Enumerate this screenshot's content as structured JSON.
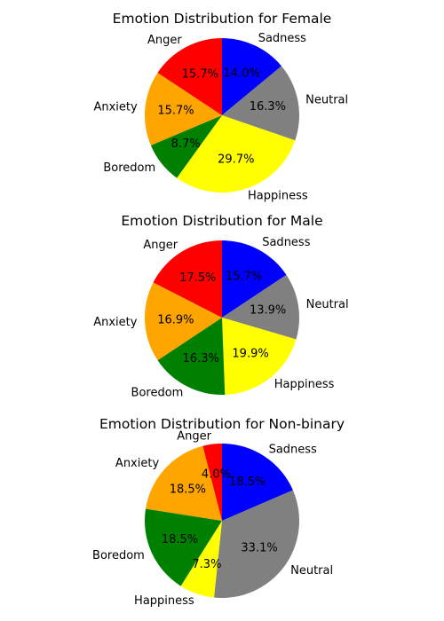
{
  "chart_data": [
    {
      "type": "pie",
      "title": "Emotion Distribution for Female",
      "categories": [
        "Sadness",
        "Neutral",
        "Happiness",
        "Boredom",
        "Anxiety",
        "Anger"
      ],
      "values": [
        14.0,
        16.3,
        29.7,
        8.7,
        15.7,
        15.7
      ],
      "value_labels": [
        "14.0%",
        "16.3%",
        "29.7%",
        "8.7%",
        "15.7%",
        "15.7%"
      ],
      "colors": [
        "#0000ff",
        "#808080",
        "#ffff00",
        "#008000",
        "#ffa500",
        "#ff0000"
      ],
      "start_angle_deg": 90,
      "direction": "clockwise"
    },
    {
      "type": "pie",
      "title": "Emotion Distribution for Male",
      "categories": [
        "Sadness",
        "Neutral",
        "Happiness",
        "Boredom",
        "Anxiety",
        "Anger"
      ],
      "values": [
        15.7,
        13.9,
        19.9,
        16.3,
        16.9,
        17.5
      ],
      "value_labels": [
        "15.7%",
        "13.9%",
        "19.9%",
        "16.3%",
        "16.9%",
        "17.5%"
      ],
      "colors": [
        "#0000ff",
        "#808080",
        "#ffff00",
        "#008000",
        "#ffa500",
        "#ff0000"
      ],
      "start_angle_deg": 90,
      "direction": "clockwise"
    },
    {
      "type": "pie",
      "title": "Emotion Distribution for Non-binary",
      "categories": [
        "Sadness",
        "Neutral",
        "Happiness",
        "Boredom",
        "Anxiety",
        "Anger"
      ],
      "values": [
        18.5,
        33.1,
        7.3,
        18.5,
        18.5,
        4.0
      ],
      "value_labels": [
        "18.5%",
        "33.1%",
        "7.3%",
        "18.5%",
        "18.5%",
        "4.0%"
      ],
      "colors": [
        "#0000ff",
        "#808080",
        "#ffff00",
        "#008000",
        "#ffa500",
        "#ff0000"
      ],
      "start_angle_deg": 90,
      "direction": "clockwise"
    }
  ]
}
